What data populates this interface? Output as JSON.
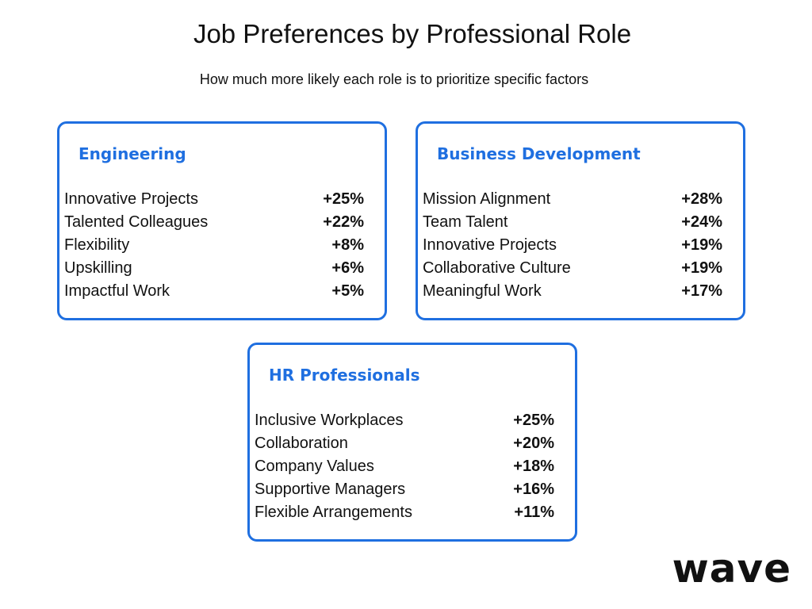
{
  "header": {
    "title": "Job Preferences by Professional Role",
    "subtitle": "How much more likely each role is to prioritize specific factors"
  },
  "cards": [
    {
      "title": "Engineering",
      "rows": [
        [
          "Innovative Projects",
          "+25%"
        ],
        [
          "Talented Colleagues",
          "+22%"
        ],
        [
          "Flexibility",
          "+8%"
        ],
        [
          "Upskilling",
          "+6%"
        ],
        [
          "Impactful Work",
          "+5%"
        ]
      ]
    },
    {
      "title": "Business Development",
      "rows": [
        [
          "Mission Alignment",
          "+28%"
        ],
        [
          "Team Talent",
          "+24%"
        ],
        [
          "Innovative Projects",
          "+19%"
        ],
        [
          "Collaborative Culture",
          "+19%"
        ],
        [
          "Meaningful Work",
          "+17%"
        ]
      ]
    },
    {
      "title": "HR Professionals",
      "rows": [
        [
          "Inclusive Workplaces",
          "+25%"
        ],
        [
          "Collaboration",
          "+20%"
        ],
        [
          "Company Values",
          "+18%"
        ],
        [
          "Supportive Managers",
          "+16%"
        ],
        [
          "Flexible Arrangements",
          "+11%"
        ]
      ]
    }
  ],
  "logo": "wave"
}
